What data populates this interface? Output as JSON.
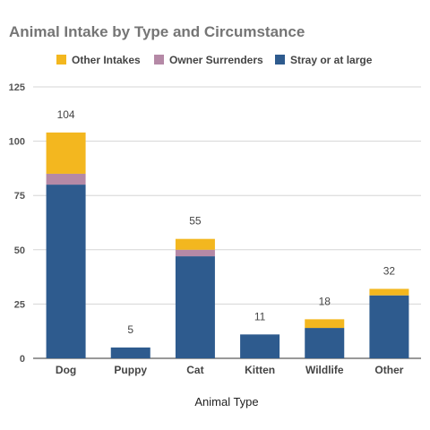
{
  "chart_data": {
    "type": "bar",
    "stacked": true,
    "title": "Animal Intake by Type and Circumstance",
    "xlabel": "Animal Type",
    "ylabel": "",
    "categories": [
      "Dog",
      "Puppy",
      "Cat",
      "Kitten",
      "Wildlife",
      "Other"
    ],
    "series": [
      {
        "name": "Stray or at large",
        "color": "#2e5b8e",
        "values": [
          80,
          5,
          47,
          11,
          14,
          29
        ]
      },
      {
        "name": "Owner Surrenders",
        "color": "#b589a6",
        "values": [
          5,
          0,
          3,
          0,
          0,
          0
        ]
      },
      {
        "name": "Other Intakes",
        "color": "#f3b71f",
        "values": [
          19,
          0,
          5,
          0,
          4,
          3
        ]
      }
    ],
    "totals": [
      104,
      5,
      55,
      11,
      18,
      32
    ],
    "legend_order": [
      "Other Intakes",
      "Owner Surrenders",
      "Stray or at large"
    ],
    "yticks": [
      0,
      25,
      50,
      75,
      100,
      125
    ],
    "ylim": [
      0,
      125
    ],
    "grid": true,
    "legend_position": "top"
  }
}
